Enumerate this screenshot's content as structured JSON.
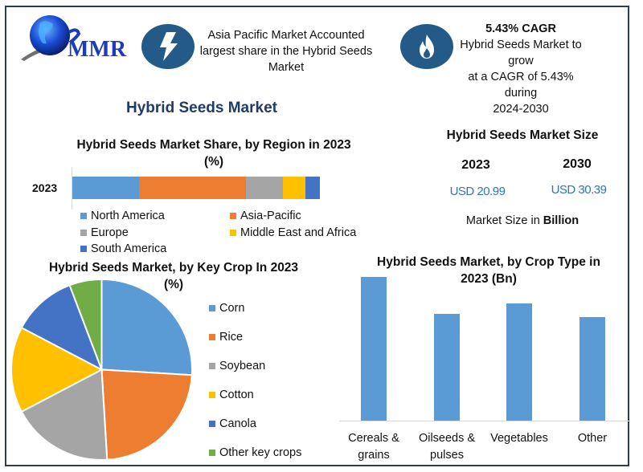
{
  "header": {
    "logo_text": "MMR",
    "highlight_1": {
      "icon": "lightning-bolt-icon",
      "text": "Asia Pacific Market Accounted largest share in the Hybrid Seeds Market",
      "lines": [
        "Asia Pacific Market Accounted",
        "largest share in the Hybrid Seeds",
        "Market"
      ]
    },
    "highlight_2": {
      "icon": "flame-icon",
      "title": "5.43% CAGR",
      "lines": [
        "Hybrid Seeds Market to grow",
        "at a CAGR of 5.43% during",
        "2024-2030"
      ]
    }
  },
  "main_title": "Hybrid Seeds Market",
  "market_size": {
    "title": "Hybrid Seeds Market Size",
    "years": [
      {
        "year": "2023",
        "value": "USD 20.99"
      },
      {
        "year": "2030",
        "value": "USD 30.39"
      }
    ],
    "note_prefix": "Market Size in ",
    "note_unit": "Billion"
  },
  "colors": {
    "accent_blue": "#5b9bd5",
    "orange": "#ed7d31",
    "gray": "#a5a5a5",
    "yellow": "#ffc000",
    "dark_blue": "#4472c4",
    "green": "#70ad47",
    "badge": "#245a87",
    "title_navy": "#1f3b66",
    "usd_blue": "#2e75b6"
  },
  "chart_data": [
    {
      "type": "bar",
      "orientation": "horizontal-stacked",
      "title": "Hybrid Seeds Market Share, by Region in 2023",
      "title_line2": "(%)",
      "categories": [
        "2023"
      ],
      "series": [
        {
          "name": "North America",
          "values": [
            27
          ],
          "color": "#5b9bd5"
        },
        {
          "name": "Asia-Pacific",
          "values": [
            43
          ],
          "color": "#ed7d31"
        },
        {
          "name": "Europe",
          "values": [
            15
          ],
          "color": "#a5a5a5"
        },
        {
          "name": "Middle East and Africa",
          "values": [
            9
          ],
          "color": "#ffc000"
        },
        {
          "name": "South America",
          "values": [
            6
          ],
          "color": "#4472c4"
        }
      ],
      "xlabel": "",
      "ylabel": "",
      "grid": false,
      "legend_position": "bottom"
    },
    {
      "type": "pie",
      "title": "Hybrid Seeds Market, by Key Crop In 2023",
      "title_line2": "(%)",
      "categories": [
        "Corn",
        "Rice",
        "Soybean",
        "Cotton",
        "Canola",
        "Other key crops"
      ],
      "values": [
        27,
        24,
        19,
        16,
        12,
        6
      ],
      "colors": [
        "#5b9bd5",
        "#ed7d31",
        "#a5a5a5",
        "#ffc000",
        "#4472c4",
        "#70ad47"
      ],
      "legend_position": "right"
    },
    {
      "type": "bar",
      "title": "Hybrid Seeds Market, by Crop Type in",
      "title_line2": "2023 (Bn)",
      "categories": [
        "Cereals & grains",
        "Oilseeds & pulses",
        "Vegetables",
        "Other"
      ],
      "category_lines": [
        [
          "Cereals &",
          "grains"
        ],
        [
          "Oilseeds &",
          "pulses"
        ],
        [
          "Vegetables"
        ],
        [
          "Other"
        ]
      ],
      "values": [
        6.4,
        4.76,
        5.22,
        4.61
      ],
      "color": "#5b9bd5",
      "xlabel": "",
      "ylabel": "",
      "ylim": [
        0,
        7
      ],
      "grid": false
    }
  ]
}
